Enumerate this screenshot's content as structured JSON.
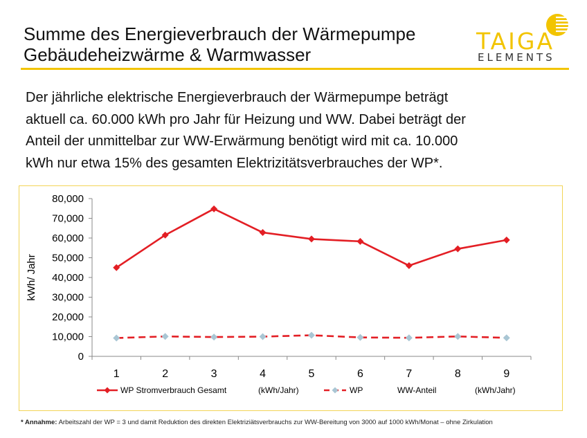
{
  "header": {
    "title_line1": "Summe des Energieverbrauch der Wärmepumpe",
    "title_line2": "Gebäudeheizwärme & Warmwasser"
  },
  "logo": {
    "brand": "TAIGA",
    "sub": "ELEMENTS",
    "color": "#f2c400"
  },
  "body": {
    "lines": [
      "Der jährliche elektrische Energieverbrauch der Wärmepumpe  beträgt",
      "aktuell ca. 60.000 kWh pro  Jahr für Heizung und WW. Dabei beträgt der",
      "Anteil der unmittelbar  zur WW-Erwärmung benötigt wird mit  ca. 10.000",
      "kWh nur etwa 15% des  gesamten Elektrizitätsverbrauches der WP*."
    ]
  },
  "chart_data": {
    "type": "line",
    "x": [
      "1",
      "2",
      "3",
      "4",
      "5",
      "6",
      "7",
      "8",
      "9"
    ],
    "ylabel": "kWh/ Jahr",
    "xlabel": "",
    "ylim": [
      0,
      80000
    ],
    "yticks": [
      "80,000",
      "70,000",
      "60,000",
      "50,000",
      "40,000",
      "30,000",
      "20,000",
      "10,000",
      "0"
    ],
    "grid": false,
    "legend_position": "bottom",
    "series": [
      {
        "name": "WP Stromverbrauch Gesamt",
        "legend_unit": "(kWh/Jahr)",
        "color": "#e31e24",
        "marker": "diamond",
        "line_style": "solid",
        "values": [
          45000,
          61500,
          74800,
          62800,
          59500,
          58300,
          46000,
          54500,
          59000
        ]
      },
      {
        "name": "WP",
        "legend_extra": "WW-Anteil",
        "legend_unit": "(kWh/Jahr)",
        "color": "#e31e24",
        "marker_color": "#a9c6d4",
        "marker": "diamond",
        "line_style": "dashed",
        "values": [
          9300,
          10100,
          9800,
          10000,
          10700,
          9600,
          9400,
          10100,
          9400
        ]
      }
    ]
  },
  "footnote": {
    "label": "* Annahme:",
    "text": "Arbeitszahl der WP = 3 und damit Reduktion des direkten  Elektriziätsverbrauchs zur WW-Bereitung von 3000 auf 1000 kWh/Monat – ohne Zirkulation"
  }
}
